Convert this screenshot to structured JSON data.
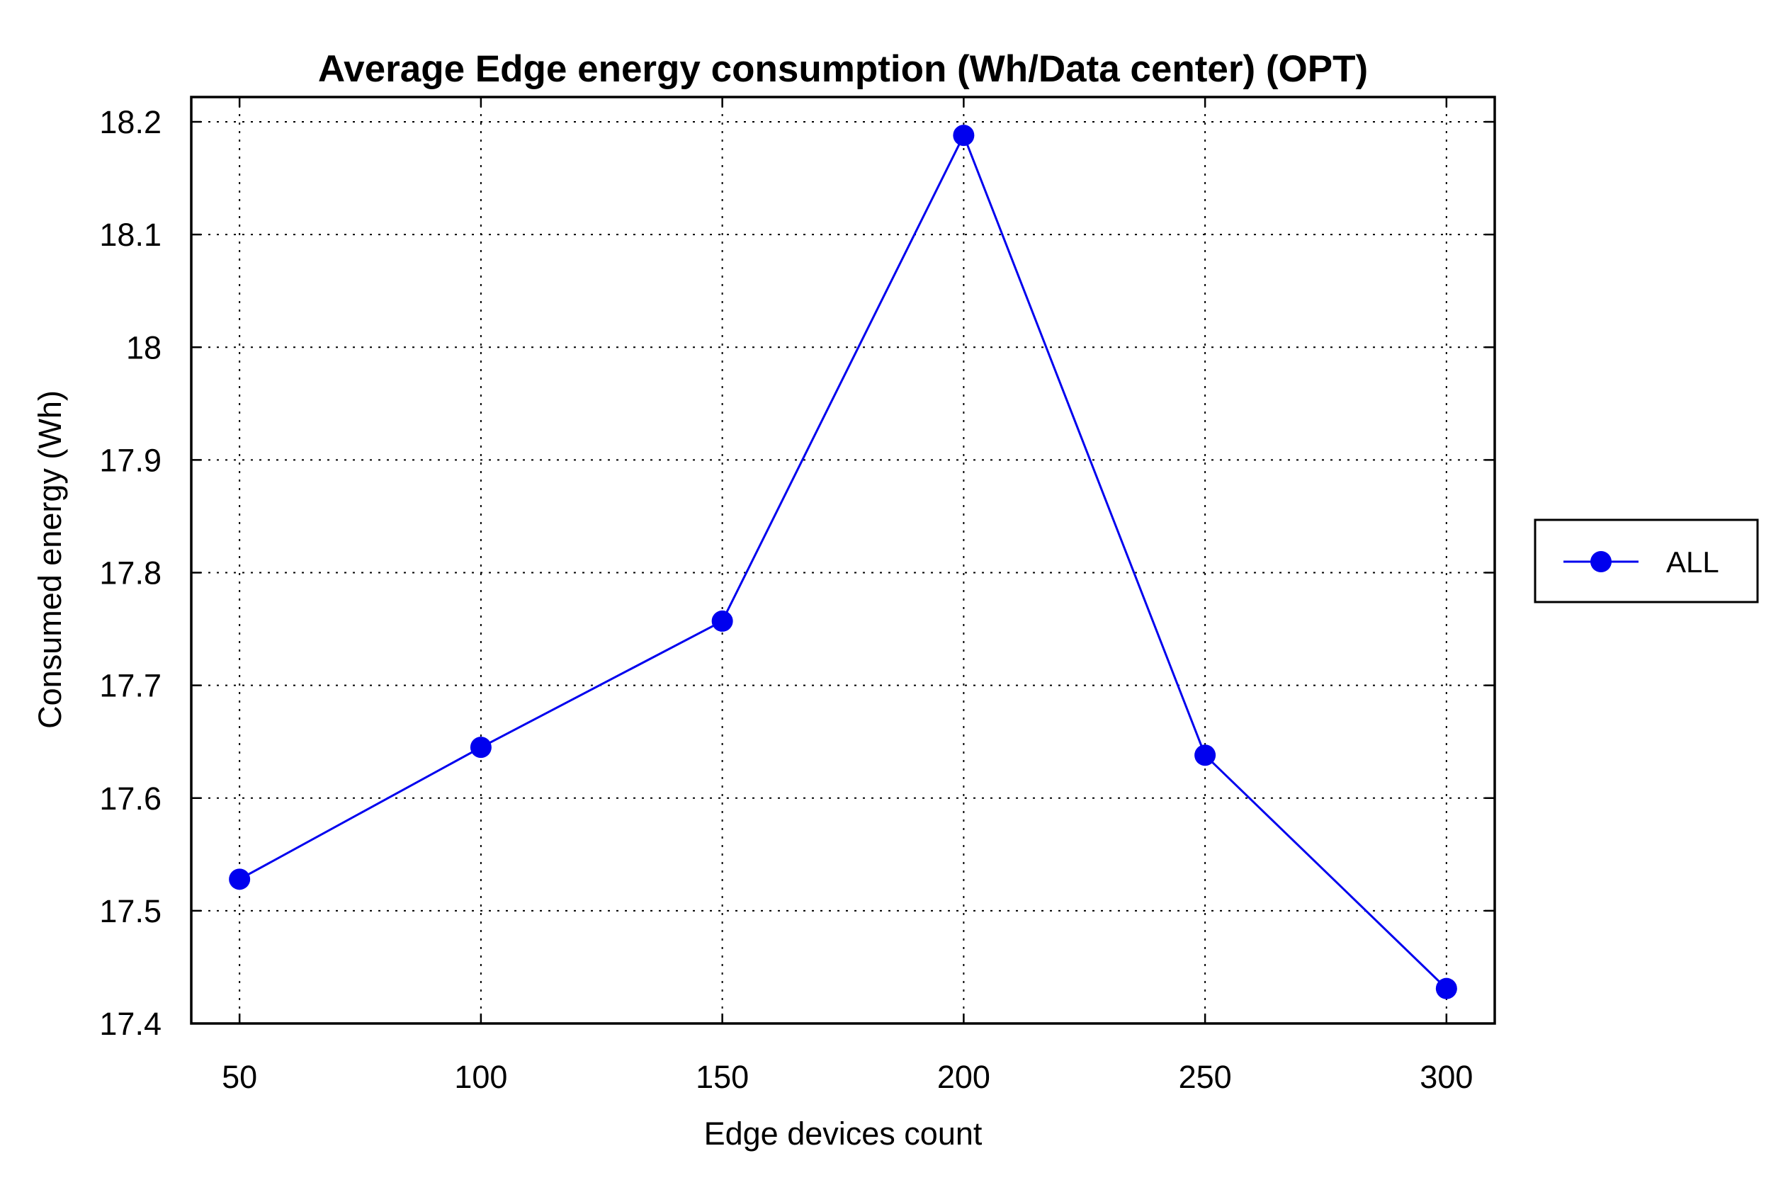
{
  "chart_data": {
    "type": "line",
    "title": "Average Edge energy consumption (Wh/Data center) (OPT)",
    "xlabel": "Edge devices count",
    "ylabel": "Consumed energy (Wh)",
    "x": [
      50,
      100,
      150,
      200,
      250,
      300
    ],
    "xticks": [
      "50",
      "100",
      "150",
      "200",
      "250",
      "300"
    ],
    "xlim": [
      40,
      310
    ],
    "yticks": [
      "17.4",
      "17.5",
      "17.6",
      "17.7",
      "17.8",
      "17.9",
      "18",
      "18.1",
      "18.2"
    ],
    "ylim": [
      17.4,
      18.2
    ],
    "grid": true,
    "legend_position": "right",
    "series": [
      {
        "name": "ALL",
        "color": "#0000ee",
        "marker": "circle",
        "values": [
          17.528,
          17.645,
          17.757,
          18.188,
          17.638,
          17.431
        ]
      }
    ]
  }
}
